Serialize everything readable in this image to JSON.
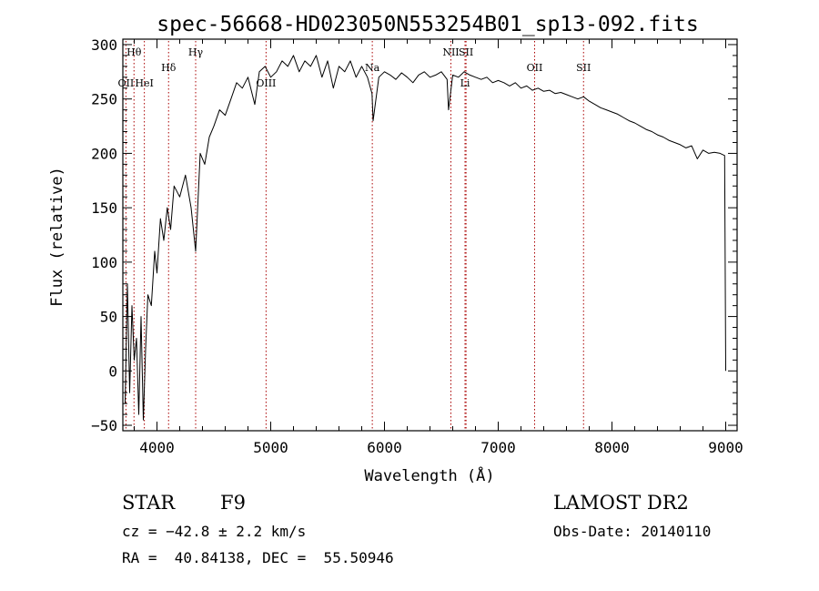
{
  "chart_data": {
    "type": "line",
    "title": "spec-56668-HD023050N553254B01_sp13-092.fits",
    "xlabel": "Wavelength (Å)",
    "ylabel": "Flux (relative)",
    "xlim": [
      3700,
      9100
    ],
    "ylim": [
      -55,
      305
    ],
    "xticks": [
      4000,
      5000,
      6000,
      7000,
      8000,
      9000
    ],
    "yticks": [
      -50,
      0,
      50,
      100,
      150,
      200,
      250,
      300
    ],
    "grid": false,
    "line_color": "#000000",
    "marker_color": "#aa0000",
    "series": [
      {
        "x": [
          3720,
          3740,
          3760,
          3780,
          3800,
          3820,
          3840,
          3860,
          3880,
          3900,
          3920,
          3950,
          3980,
          4000,
          4030,
          4060,
          4090,
          4120,
          4150,
          4200,
          4250,
          4300,
          4340,
          4380,
          4420,
          4460,
          4500,
          4550,
          4600,
          4650,
          4700,
          4750,
          4800,
          4860,
          4900,
          4950,
          5000,
          5050,
          5100,
          5150,
          5200,
          5250,
          5300,
          5350,
          5400,
          5450,
          5500,
          5550,
          5600,
          5650,
          5700,
          5750,
          5800,
          5850,
          5890,
          5900,
          5950,
          6000,
          6050,
          6100,
          6150,
          6200,
          6250,
          6300,
          6350,
          6400,
          6450,
          6500,
          6550,
          6563,
          6600,
          6650,
          6700,
          6750,
          6800,
          6850,
          6900,
          6950,
          7000,
          7050,
          7100,
          7150,
          7200,
          7250,
          7300,
          7350,
          7400,
          7450,
          7500,
          7550,
          7600,
          7650,
          7700,
          7750,
          7800,
          7850,
          7900,
          7950,
          8000,
          8050,
          8100,
          8150,
          8200,
          8250,
          8300,
          8350,
          8400,
          8450,
          8500,
          8550,
          8600,
          8650,
          8700,
          8750,
          8800,
          8850,
          8900,
          8950,
          8990,
          9000
        ],
        "y": [
          -30,
          80,
          -20,
          60,
          10,
          30,
          -40,
          50,
          -45,
          20,
          70,
          60,
          110,
          90,
          140,
          120,
          150,
          130,
          170,
          160,
          180,
          150,
          110,
          200,
          190,
          215,
          225,
          240,
          235,
          250,
          265,
          260,
          270,
          245,
          275,
          280,
          270,
          275,
          285,
          280,
          290,
          275,
          285,
          280,
          290,
          270,
          285,
          260,
          280,
          275,
          285,
          270,
          280,
          270,
          255,
          230,
          270,
          275,
          272,
          268,
          274,
          270,
          265,
          272,
          275,
          270,
          272,
          275,
          268,
          240,
          272,
          270,
          275,
          272,
          270,
          268,
          270,
          265,
          267,
          265,
          262,
          265,
          260,
          262,
          258,
          260,
          257,
          258,
          255,
          256,
          254,
          252,
          250,
          252,
          248,
          245,
          242,
          240,
          238,
          236,
          233,
          230,
          228,
          225,
          222,
          220,
          217,
          215,
          212,
          210,
          208,
          205,
          207,
          195,
          203,
          200,
          201,
          200,
          198,
          0
        ]
      }
    ],
    "line_markers": [
      {
        "label": "Hθ",
        "x": 3798,
        "row": 1
      },
      {
        "label": "OII",
        "x": 3727,
        "row": 3
      },
      {
        "label": "HeI",
        "x": 3889,
        "row": 3
      },
      {
        "label": "Hδ",
        "x": 4102,
        "row": 2
      },
      {
        "label": "Hγ",
        "x": 4340,
        "row": 1
      },
      {
        "label": "OIII",
        "x": 4959,
        "row": 3
      },
      {
        "label": "Na",
        "x": 5893,
        "row": 2
      },
      {
        "label": "NII",
        "x": 6584,
        "row": 1
      },
      {
        "label": "SII",
        "x": 6717,
        "row": 1
      },
      {
        "label": "Li",
        "x": 6708,
        "row": 3
      },
      {
        "label": "OII",
        "x": 7320,
        "row": 2
      },
      {
        "label": "SII",
        "x": 7750,
        "row": 2
      }
    ]
  },
  "info": {
    "object_class": "STAR",
    "subclass": "F9",
    "survey": "LAMOST DR2",
    "redshift": "cz = −42.8 ± 2.2 km/s",
    "obs_date": "Obs-Date: 20140110",
    "coords": "RA =  40.84138, DEC =  55.50946"
  }
}
